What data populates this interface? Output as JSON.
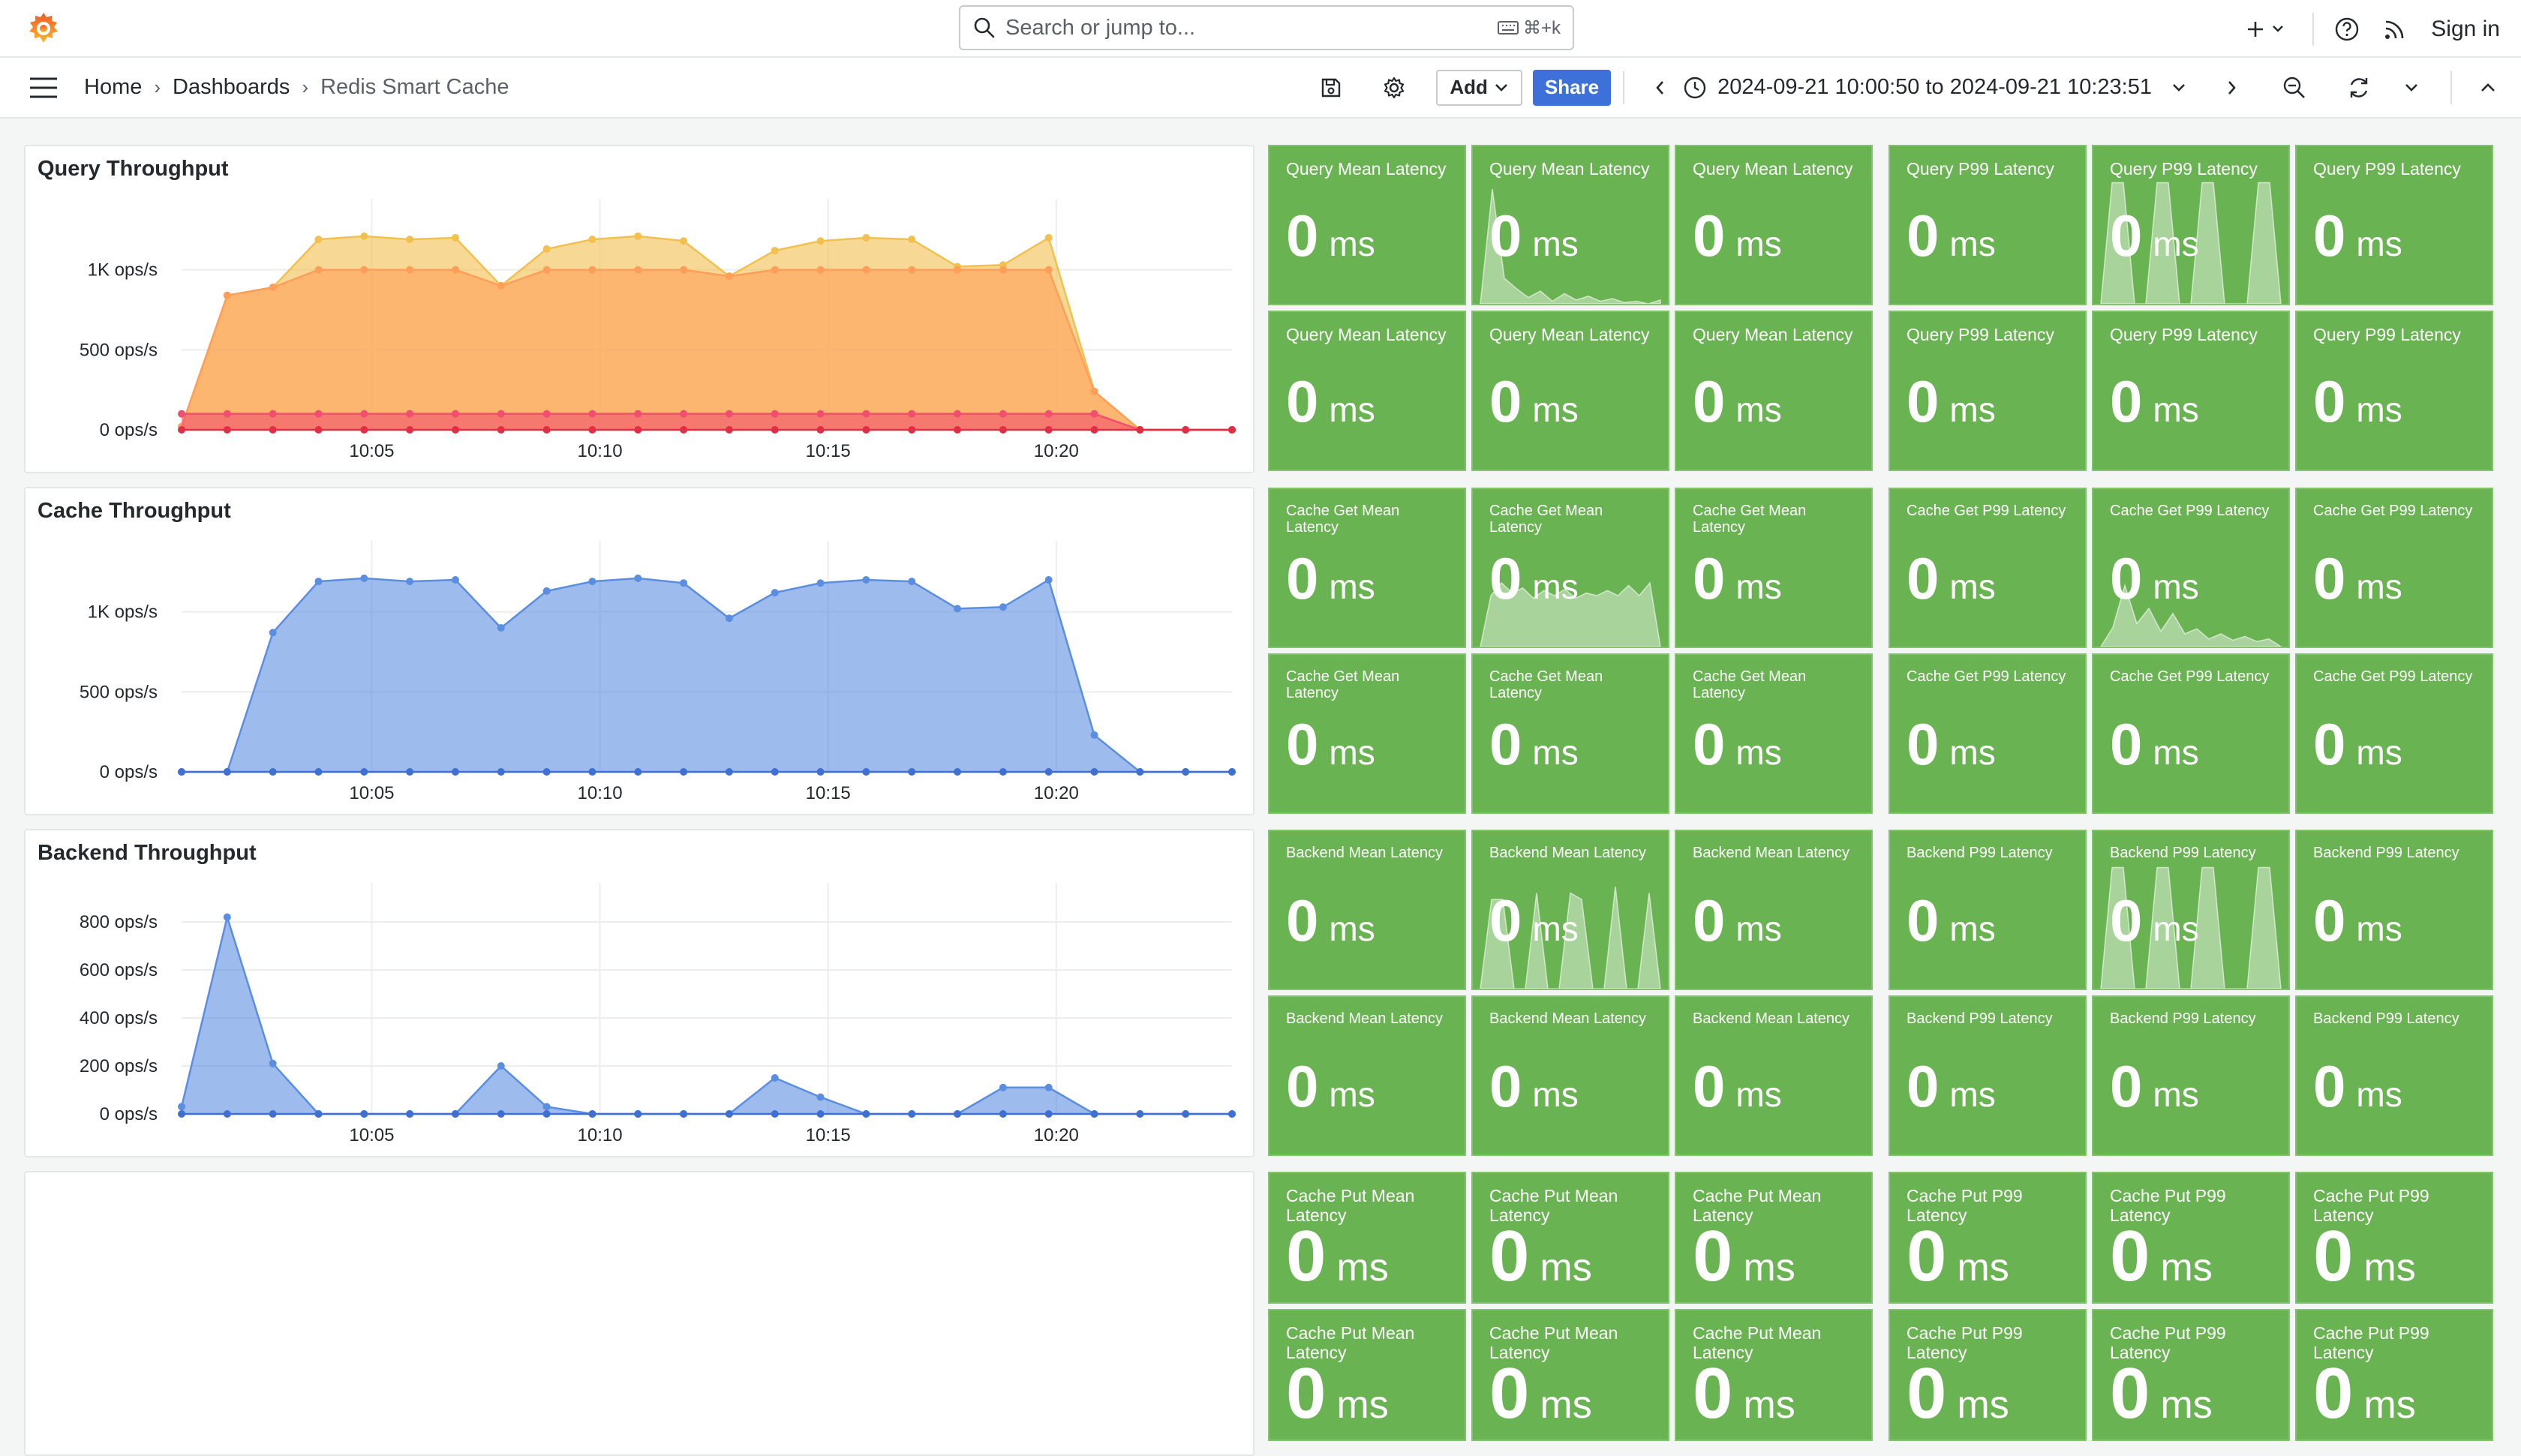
{
  "topbar": {
    "search_placeholder": "Search or jump to...",
    "search_shortcut": "⌘+k",
    "sign_in": "Sign in",
    "icons": [
      "grafana-logo-icon",
      "search-icon",
      "keyboard-icon",
      "plus-icon",
      "help-icon",
      "rss-icon"
    ]
  },
  "navbar": {
    "breadcrumbs": [
      "Home",
      "Dashboards",
      "Redis Smart Cache"
    ],
    "add_label": "Add",
    "share_label": "Share",
    "time_range": "2024-09-21 10:00:50 to 2024-09-21 10:23:51"
  },
  "panels": {
    "query_throughput": {
      "title": "Query Throughput",
      "yticks": [
        "0 ops/s",
        "500 ops/s",
        "1K ops/s"
      ],
      "xticks": [
        "10:05",
        "10:10",
        "10:15",
        "10:20"
      ]
    },
    "cache_throughput": {
      "title": "Cache Throughput",
      "yticks": [
        "0 ops/s",
        "500 ops/s",
        "1K ops/s"
      ],
      "xticks": [
        "10:05",
        "10:10",
        "10:15",
        "10:20"
      ]
    },
    "backend_throughput": {
      "title": "Backend Throughput",
      "yticks": [
        "0 ops/s",
        "200 ops/s",
        "400 ops/s",
        "600 ops/s",
        "800 ops/s"
      ],
      "xticks": [
        "10:05",
        "10:10",
        "10:15",
        "10:20"
      ]
    }
  },
  "chart_data": [
    {
      "type": "area",
      "name": "query-throughput",
      "x": [
        "10:00:50",
        "10:01:50",
        "10:02:50",
        "10:03:50",
        "10:04:50",
        "10:05:50",
        "10:06:50",
        "10:07:50",
        "10:08:50",
        "10:09:50",
        "10:10:50",
        "10:11:50",
        "10:12:50",
        "10:13:50",
        "10:14:50",
        "10:15:50",
        "10:16:50",
        "10:17:50",
        "10:18:50",
        "10:19:50",
        "10:20:50",
        "10:21:50",
        "10:22:50",
        "10:23:51"
      ],
      "series": [
        {
          "color": "#f2c04f",
          "values": [
            20,
            840,
            890,
            1190,
            1210,
            1190,
            1200,
            900,
            1130,
            1190,
            1210,
            1180,
            960,
            1120,
            1180,
            1200,
            1190,
            1020,
            1030,
            1200,
            240,
            0,
            0,
            0
          ]
        },
        {
          "color": "#ff9e59",
          "values": [
            20,
            840,
            890,
            1000,
            1000,
            1000,
            1000,
            900,
            1000,
            1000,
            1000,
            1000,
            960,
            1000,
            1000,
            1000,
            1000,
            1000,
            1000,
            1000,
            240,
            0,
            0,
            0
          ]
        },
        {
          "color": "#f0506e",
          "values": [
            100,
            100,
            100,
            100,
            100,
            100,
            100,
            100,
            100,
            100,
            100,
            100,
            100,
            100,
            100,
            100,
            100,
            100,
            100,
            100,
            100,
            0,
            0,
            0
          ]
        },
        {
          "color": "#e02f44",
          "values": [
            0,
            0,
            0,
            0,
            0,
            0,
            0,
            0,
            0,
            0,
            0,
            0,
            0,
            0,
            0,
            0,
            0,
            0,
            0,
            0,
            0,
            0,
            0,
            0
          ]
        }
      ],
      "yticks": [
        0,
        500,
        1000
      ],
      "ylim": [
        0,
        1350
      ]
    },
    {
      "type": "area",
      "name": "cache-throughput",
      "x": [
        "10:00:50",
        "10:01:50",
        "10:02:50",
        "10:03:50",
        "10:04:50",
        "10:05:50",
        "10:06:50",
        "10:07:50",
        "10:08:50",
        "10:09:50",
        "10:10:50",
        "10:11:50",
        "10:12:50",
        "10:13:50",
        "10:14:50",
        "10:15:50",
        "10:16:50",
        "10:17:50",
        "10:18:50",
        "10:19:50",
        "10:20:50",
        "10:21:50",
        "10:22:50",
        "10:23:51"
      ],
      "series": [
        {
          "color": "#5b8ee0",
          "values": [
            0,
            0,
            870,
            1190,
            1210,
            1190,
            1200,
            900,
            1130,
            1190,
            1210,
            1180,
            960,
            1120,
            1180,
            1200,
            1190,
            1020,
            1030,
            1200,
            230,
            0,
            0,
            0
          ]
        },
        {
          "color": "#3f6fd1",
          "values": [
            0,
            0,
            0,
            0,
            0,
            0,
            0,
            0,
            0,
            0,
            0,
            0,
            0,
            0,
            0,
            0,
            0,
            0,
            0,
            0,
            0,
            0,
            0,
            0
          ]
        }
      ],
      "yticks": [
        0,
        500,
        1000
      ],
      "ylim": [
        0,
        1350
      ]
    },
    {
      "type": "area",
      "name": "backend-throughput",
      "x": [
        "10:00:50",
        "10:01:50",
        "10:02:50",
        "10:03:50",
        "10:04:50",
        "10:05:50",
        "10:06:50",
        "10:07:50",
        "10:08:50",
        "10:09:50",
        "10:10:50",
        "10:11:50",
        "10:12:50",
        "10:13:50",
        "10:14:50",
        "10:15:50",
        "10:16:50",
        "10:17:50",
        "10:18:50",
        "10:19:50",
        "10:20:50",
        "10:21:50",
        "10:22:50",
        "10:23:51"
      ],
      "series": [
        {
          "color": "#5b8ee0",
          "values": [
            30,
            820,
            210,
            0,
            0,
            0,
            0,
            200,
            30,
            0,
            0,
            0,
            0,
            150,
            70,
            0,
            0,
            0,
            110,
            110,
            0,
            0,
            0,
            0
          ]
        },
        {
          "color": "#3f6fd1",
          "values": [
            0,
            0,
            0,
            0,
            0,
            0,
            0,
            0,
            0,
            0,
            0,
            0,
            0,
            0,
            0,
            0,
            0,
            0,
            0,
            0,
            0,
            0,
            0,
            0
          ]
        }
      ],
      "yticks": [
        0,
        200,
        400,
        600,
        800
      ],
      "ylim": [
        0,
        900
      ]
    }
  ],
  "tiles": [
    {
      "title": "Query Mean Latency",
      "value": "0",
      "unit": "ms",
      "spark": null
    },
    {
      "title": "Query Mean Latency",
      "value": "0",
      "unit": "ms",
      "spark": [
        0,
        0.9,
        0.2,
        0.12,
        0.05,
        0.1,
        0.02,
        0.08,
        0.03,
        0.06,
        0.02,
        0.04,
        0.01,
        0.02,
        0,
        0.03
      ]
    },
    {
      "title": "Query Mean Latency",
      "value": "0",
      "unit": "ms",
      "spark": null
    },
    {
      "title": "Query P99 Latency",
      "value": "0",
      "unit": "ms",
      "spark": null
    },
    {
      "title": "Query P99 Latency",
      "value": "0",
      "unit": "ms",
      "spark": [
        0,
        0.95,
        0.95,
        0,
        0,
        0.95,
        0.95,
        0,
        0,
        0.95,
        0.95,
        0,
        0,
        0,
        0.95,
        0.95,
        0
      ]
    },
    {
      "title": "Query P99 Latency",
      "value": "0",
      "unit": "ms",
      "spark": null
    },
    {
      "title": "Query Mean Latency",
      "value": "0",
      "unit": "ms",
      "spark": null
    },
    {
      "title": "Query Mean Latency",
      "value": "0",
      "unit": "ms",
      "spark": null
    },
    {
      "title": "Query Mean Latency",
      "value": "0",
      "unit": "ms",
      "spark": null
    },
    {
      "title": "Query P99 Latency",
      "value": "0",
      "unit": "ms",
      "spark": null
    },
    {
      "title": "Query P99 Latency",
      "value": "0",
      "unit": "ms",
      "spark": null
    },
    {
      "title": "Query P99 Latency",
      "value": "0",
      "unit": "ms",
      "spark": null
    },
    {
      "title": "Cache Get Mean Latency",
      "value": "0",
      "unit": "ms",
      "spark": null
    },
    {
      "title": "Cache Get Mean Latency",
      "value": "0",
      "unit": "ms",
      "spark": [
        0,
        0.4,
        0.5,
        0.42,
        0.46,
        0.38,
        0.44,
        0.4,
        0.45,
        0.38,
        0.42,
        0.4,
        0.44,
        0.4,
        0.48,
        0.4,
        0.5,
        0
      ]
    },
    {
      "title": "Cache Get Mean Latency",
      "value": "0",
      "unit": "ms",
      "spark": null
    },
    {
      "title": "Cache Get P99 Latency",
      "value": "0",
      "unit": "ms",
      "spark": null
    },
    {
      "title": "Cache Get P99 Latency",
      "value": "0",
      "unit": "ms",
      "spark": [
        0,
        0.15,
        0.48,
        0.18,
        0.3,
        0.12,
        0.26,
        0.1,
        0.14,
        0.06,
        0.1,
        0.05,
        0.08,
        0.04,
        0.06,
        0
      ]
    },
    {
      "title": "Cache Get P99 Latency",
      "value": "0",
      "unit": "ms",
      "spark": null
    },
    {
      "title": "Cache Get Mean Latency",
      "value": "0",
      "unit": "ms",
      "spark": null
    },
    {
      "title": "Cache Get Mean Latency",
      "value": "0",
      "unit": "ms",
      "spark": null
    },
    {
      "title": "Cache Get Mean Latency",
      "value": "0",
      "unit": "ms",
      "spark": null
    },
    {
      "title": "Cache Get P99 Latency",
      "value": "0",
      "unit": "ms",
      "spark": null
    },
    {
      "title": "Cache Get P99 Latency",
      "value": "0",
      "unit": "ms",
      "spark": null
    },
    {
      "title": "Cache Get P99 Latency",
      "value": "0",
      "unit": "ms",
      "spark": null
    },
    {
      "title": "Backend Mean Latency",
      "value": "0",
      "unit": "ms",
      "spark": null
    },
    {
      "title": "Backend Mean Latency",
      "value": "0",
      "unit": "ms",
      "spark": [
        0,
        0.7,
        0.7,
        0,
        0,
        0.75,
        0,
        0,
        0.75,
        0.7,
        0,
        0,
        0.8,
        0,
        0,
        0.75,
        0
      ]
    },
    {
      "title": "Backend Mean Latency",
      "value": "0",
      "unit": "ms",
      "spark": null
    },
    {
      "title": "Backend P99 Latency",
      "value": "0",
      "unit": "ms",
      "spark": null
    },
    {
      "title": "Backend P99 Latency",
      "value": "0",
      "unit": "ms",
      "spark": [
        0,
        0.95,
        0.95,
        0,
        0,
        0.95,
        0.95,
        0,
        0,
        0.95,
        0.95,
        0,
        0,
        0,
        0.95,
        0.95,
        0
      ]
    },
    {
      "title": "Backend P99 Latency",
      "value": "0",
      "unit": "ms",
      "spark": null
    },
    {
      "title": "Backend Mean Latency",
      "value": "0",
      "unit": "ms",
      "spark": null
    },
    {
      "title": "Backend Mean Latency",
      "value": "0",
      "unit": "ms",
      "spark": null
    },
    {
      "title": "Backend Mean Latency",
      "value": "0",
      "unit": "ms",
      "spark": null
    },
    {
      "title": "Backend P99 Latency",
      "value": "0",
      "unit": "ms",
      "spark": null
    },
    {
      "title": "Backend P99 Latency",
      "value": "0",
      "unit": "ms",
      "spark": null
    },
    {
      "title": "Backend P99 Latency",
      "value": "0",
      "unit": "ms",
      "spark": null
    },
    {
      "title": "Cache Put Mean Latency",
      "value": "0",
      "unit": "ms",
      "spark": null
    },
    {
      "title": "Cache Put Mean Latency",
      "value": "0",
      "unit": "ms",
      "spark": null
    },
    {
      "title": "Cache Put Mean Latency",
      "value": "0",
      "unit": "ms",
      "spark": null
    },
    {
      "title": "Cache Put P99 Latency",
      "value": "0",
      "unit": "ms",
      "spark": null
    },
    {
      "title": "Cache Put P99 Latency",
      "value": "0",
      "unit": "ms",
      "spark": null
    },
    {
      "title": "Cache Put P99 Latency",
      "value": "0",
      "unit": "ms",
      "spark": null
    },
    {
      "title": "Cache Put Mean Latency",
      "value": "0",
      "unit": "ms",
      "spark": null
    },
    {
      "title": "Cache Put Mean Latency",
      "value": "0",
      "unit": "ms",
      "spark": null
    },
    {
      "title": "Cache Put Mean Latency",
      "value": "0",
      "unit": "ms",
      "spark": null
    },
    {
      "title": "Cache Put P99 Latency",
      "value": "0",
      "unit": "ms",
      "spark": null
    },
    {
      "title": "Cache Put P99 Latency",
      "value": "0",
      "unit": "ms",
      "spark": null
    },
    {
      "title": "Cache Put P99 Latency",
      "value": "0",
      "unit": "ms",
      "spark": null
    }
  ],
  "colors": {
    "tile_green": "#6ab352",
    "share_blue": "#3d71d9",
    "grafana_orange": "#f05a28"
  }
}
